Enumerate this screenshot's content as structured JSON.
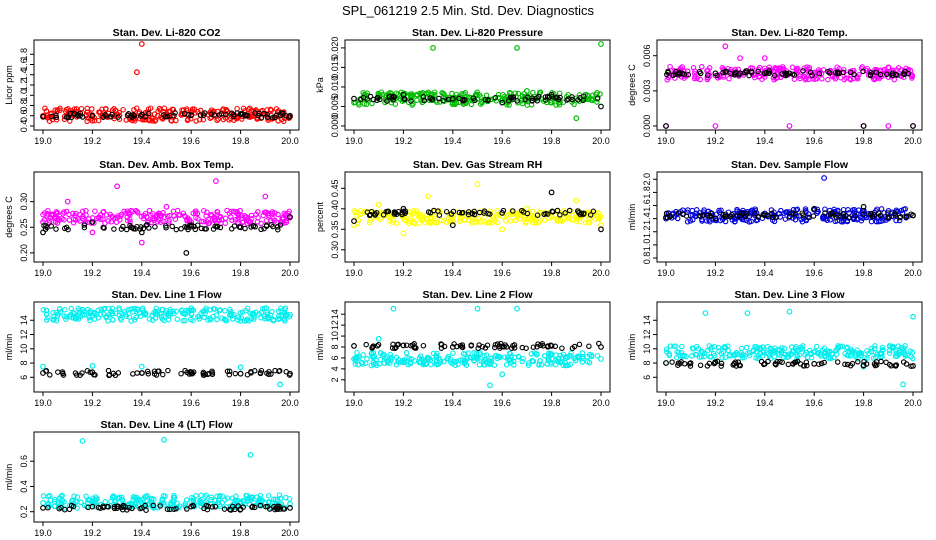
{
  "figure_title": "SPL_061219  2.5 Min. Std. Dev. Diagnostics",
  "chart_data": [
    {
      "type": "scatter",
      "title": "Stan. Dev. Li-820 CO2",
      "ylabel": "Licor ppm",
      "xlim": [
        19.0,
        20.0
      ],
      "ylim": [
        0.4,
        2.0
      ],
      "xticks": [
        "19.0",
        "19.2",
        "19.4",
        "19.6",
        "19.8",
        "20.0"
      ],
      "yticks": [
        "0.4",
        "0.6",
        "0.8",
        "1.0",
        "1.2",
        "1.4",
        "1.6",
        "1.8"
      ],
      "series": [
        {
          "color": "#ff0000",
          "x": [
            19.0,
            19.1,
            19.2,
            19.3,
            19.38,
            19.4,
            19.5,
            19.6,
            19.7,
            19.8,
            19.9,
            20.0
          ],
          "y": [
            0.6,
            0.62,
            0.61,
            0.63,
            1.45,
            2.0,
            0.64,
            0.62,
            0.6,
            0.63,
            0.62,
            0.58
          ]
        },
        {
          "color": "#000000",
          "x": [
            19.0,
            19.2,
            19.4,
            19.6,
            19.8,
            20.0
          ],
          "y": [
            0.58,
            0.6,
            0.62,
            0.61,
            0.63,
            0.6
          ]
        }
      ]
    },
    {
      "type": "scatter",
      "title": "Stan. Dev. Li-820 Pressure",
      "ylabel": "kPa",
      "xlim": [
        19.0,
        20.0
      ],
      "ylim": [
        0.0,
        0.021
      ],
      "xticks": [
        "19.0",
        "19.2",
        "19.4",
        "19.6",
        "19.8",
        "20.0"
      ],
      "yticks": [
        "0.000",
        "0.005",
        "0.010",
        "0.015",
        "0.020"
      ],
      "series": [
        {
          "color": "#00bb00",
          "x": [
            19.0,
            19.1,
            19.2,
            19.32,
            19.4,
            19.5,
            19.6,
            19.66,
            19.7,
            19.8,
            19.9,
            20.0
          ],
          "y": [
            0.006,
            0.008,
            0.007,
            0.02,
            0.006,
            0.007,
            0.006,
            0.02,
            0.009,
            0.006,
            0.002,
            0.021
          ]
        },
        {
          "color": "#000000",
          "x": [
            19.0,
            19.2,
            19.4,
            19.6,
            19.8,
            20.0
          ],
          "y": [
            0.007,
            0.008,
            0.007,
            0.006,
            0.008,
            0.005
          ]
        }
      ]
    },
    {
      "type": "scatter",
      "title": "Stan. Dev. Li-820 Temp.",
      "ylabel": "degrees C",
      "xlim": [
        19.0,
        20.0
      ],
      "ylim": [
        0.0,
        0.007
      ],
      "xticks": [
        "19.0",
        "19.2",
        "19.4",
        "19.6",
        "19.8",
        "20.0"
      ],
      "yticks": [
        "0.000",
        "0.003",
        "0.006"
      ],
      "series": [
        {
          "color": "#ff00ff",
          "x": [
            19.0,
            19.2,
            19.24,
            19.3,
            19.4,
            19.45,
            19.5,
            19.6,
            19.7,
            19.8,
            19.9,
            20.0
          ],
          "y": [
            0.0,
            0.0,
            0.0068,
            0.0058,
            0.0058,
            0.0045,
            0.0,
            0.0045,
            0.0045,
            0.0,
            0.0,
            0.0
          ]
        },
        {
          "color": "#000000",
          "x": [
            19.0,
            19.14,
            19.2,
            19.3,
            19.4,
            19.5,
            19.7,
            19.8,
            20.0
          ],
          "y": [
            0.0,
            0.0045,
            0.0045,
            0.0045,
            0.0045,
            0.0045,
            0.0045,
            0.0,
            0.0
          ]
        }
      ]
    },
    {
      "type": "scatter",
      "title": "Stan. Dev. Amb. Box Temp.",
      "ylabel": "degrees C",
      "xlim": [
        19.0,
        20.0
      ],
      "ylim": [
        0.19,
        0.35
      ],
      "xticks": [
        "19.0",
        "19.2",
        "19.4",
        "19.6",
        "19.8",
        "20.0"
      ],
      "yticks": [
        "0.20",
        "0.25",
        "0.30"
      ],
      "series": [
        {
          "color": "#ff00ff",
          "x": [
            19.0,
            19.1,
            19.2,
            19.3,
            19.4,
            19.5,
            19.6,
            19.7,
            19.8,
            19.9,
            20.0
          ],
          "y": [
            0.26,
            0.3,
            0.24,
            0.33,
            0.22,
            0.29,
            0.26,
            0.34,
            0.25,
            0.31,
            0.27
          ]
        },
        {
          "color": "#000000",
          "x": [
            19.0,
            19.2,
            19.4,
            19.58,
            19.8,
            20.0
          ],
          "y": [
            0.24,
            0.26,
            0.24,
            0.2,
            0.25,
            0.27
          ]
        }
      ]
    },
    {
      "type": "scatter",
      "title": "Stan. Dev. Gas Stream RH",
      "ylabel": "percent",
      "xlim": [
        19.0,
        20.0
      ],
      "ylim": [
        0.28,
        0.48
      ],
      "xticks": [
        "19.0",
        "19.2",
        "19.4",
        "19.6",
        "19.8",
        "20.0"
      ],
      "yticks": [
        "0.30",
        "0.35",
        "0.40",
        "0.45"
      ],
      "series": [
        {
          "color": "#ffff00",
          "x": [
            19.0,
            19.1,
            19.2,
            19.3,
            19.4,
            19.5,
            19.6,
            19.7,
            19.8,
            19.9,
            20.0
          ],
          "y": [
            0.36,
            0.41,
            0.34,
            0.43,
            0.37,
            0.46,
            0.35,
            0.4,
            0.38,
            0.42,
            0.36
          ]
        },
        {
          "color": "#000000",
          "x": [
            19.0,
            19.2,
            19.4,
            19.6,
            19.8,
            20.0
          ],
          "y": [
            0.37,
            0.4,
            0.36,
            0.39,
            0.44,
            0.35
          ]
        }
      ]
    },
    {
      "type": "scatter",
      "title": "Stan. Dev. Sample Flow",
      "ylabel": "ml/min",
      "xlim": [
        19.0,
        20.0
      ],
      "ylim": [
        0.8,
        2.05
      ],
      "xticks": [
        "19.0",
        "19.2",
        "19.4",
        "19.6",
        "19.8",
        "20.0"
      ],
      "yticks": [
        "0.8",
        "1.0",
        "1.2",
        "1.4",
        "1.6",
        "1.8",
        "2.0"
      ],
      "series": [
        {
          "color": "#0000dd",
          "x": [
            19.0,
            19.1,
            19.2,
            19.3,
            19.4,
            19.5,
            19.64,
            19.7,
            19.8,
            19.9,
            20.0
          ],
          "y": [
            1.4,
            1.45,
            1.38,
            1.42,
            1.48,
            1.5,
            2.02,
            1.45,
            1.52,
            1.4,
            1.45
          ]
        },
        {
          "color": "#000000",
          "x": [
            19.0,
            19.2,
            19.4,
            19.6,
            19.8,
            20.0
          ],
          "y": [
            1.42,
            1.4,
            1.45,
            1.55,
            1.58,
            1.45
          ]
        }
      ]
    },
    {
      "type": "scatter",
      "title": "Stan. Dev. Line 1 Flow",
      "ylabel": "ml/min",
      "xlim": [
        19.0,
        20.0
      ],
      "ylim": [
        4.5,
        16
      ],
      "xticks": [
        "19.0",
        "19.2",
        "19.4",
        "19.6",
        "19.8",
        "20.0"
      ],
      "yticks": [
        "6",
        "8",
        "10",
        "12",
        "14"
      ],
      "series": [
        {
          "color": "#00eeee",
          "x": [
            19.0,
            19.16,
            19.2,
            19.33,
            19.4,
            19.5,
            19.66,
            19.8,
            19.96,
            20.0
          ],
          "y": [
            7.5,
            15.5,
            7.6,
            15.2,
            7.5,
            15.3,
            15.4,
            7.4,
            5.0,
            14.8
          ]
        },
        {
          "color": "#000000",
          "x": [
            19.0,
            19.2,
            19.4,
            19.6,
            19.8,
            20.0
          ],
          "y": [
            6.6,
            6.7,
            6.6,
            6.7,
            6.5,
            6.5
          ]
        }
      ]
    },
    {
      "type": "scatter",
      "title": "Stan. Dev. Line 2 Flow",
      "ylabel": "ml/min",
      "xlim": [
        19.0,
        20.0
      ],
      "ylim": [
        0.5,
        15.5
      ],
      "xticks": [
        "19.0",
        "19.2",
        "19.4",
        "19.6",
        "19.8",
        "20.0"
      ],
      "yticks": [
        "2",
        "4",
        "6",
        "8",
        "10",
        "12",
        "14"
      ],
      "series": [
        {
          "color": "#00eeee",
          "x": [
            19.0,
            19.1,
            19.16,
            19.3,
            19.5,
            19.55,
            19.6,
            19.66,
            19.8,
            20.0
          ],
          "y": [
            5.8,
            9.5,
            15.0,
            5.8,
            15.0,
            1.0,
            3.0,
            15.0,
            5.8,
            5.8
          ]
        },
        {
          "color": "#000000",
          "x": [
            19.0,
            19.2,
            19.4,
            19.6,
            19.8,
            20.0
          ],
          "y": [
            8.2,
            8.3,
            8.0,
            8.1,
            8.2,
            8.0
          ]
        }
      ]
    },
    {
      "type": "scatter",
      "title": "Stan. Dev. Line 3 Flow",
      "ylabel": "ml/min",
      "xlim": [
        19.0,
        20.0
      ],
      "ylim": [
        4.5,
        16
      ],
      "xticks": [
        "19.0",
        "19.2",
        "19.4",
        "19.6",
        "19.8",
        "20.0"
      ],
      "yticks": [
        "6",
        "8",
        "10",
        "12",
        "14"
      ],
      "series": [
        {
          "color": "#00eeee",
          "x": [
            19.0,
            19.16,
            19.2,
            19.33,
            19.5,
            19.66,
            19.8,
            19.96,
            20.0
          ],
          "y": [
            8.0,
            15.0,
            8.2,
            15.0,
            15.2,
            9.5,
            7.5,
            5.0,
            14.5
          ]
        },
        {
          "color": "#000000",
          "x": [
            19.0,
            19.2,
            19.4,
            19.6,
            19.8,
            20.0
          ],
          "y": [
            8.0,
            8.1,
            7.9,
            7.9,
            7.7,
            7.6
          ]
        }
      ]
    },
    {
      "type": "scatter",
      "title": "Stan. Dev. Line 4 (LT) Flow",
      "ylabel": "ml/min",
      "xlim": [
        19.0,
        20.0
      ],
      "ylim": [
        0.15,
        0.8
      ],
      "xticks": [
        "19.0",
        "19.2",
        "19.4",
        "19.6",
        "19.8",
        "20.0"
      ],
      "yticks": [
        "0.2",
        "0.4",
        "0.6"
      ],
      "series": [
        {
          "color": "#00eeee",
          "x": [
            19.0,
            19.16,
            19.2,
            19.4,
            19.49,
            19.6,
            19.84,
            19.9,
            20.0
          ],
          "y": [
            0.27,
            0.76,
            0.28,
            0.27,
            0.77,
            0.28,
            0.65,
            0.27,
            0.26
          ]
        },
        {
          "color": "#000000",
          "x": [
            19.0,
            19.2,
            19.4,
            19.6,
            19.8,
            20.0
          ],
          "y": [
            0.23,
            0.24,
            0.23,
            0.24,
            0.22,
            0.23
          ]
        }
      ]
    }
  ]
}
